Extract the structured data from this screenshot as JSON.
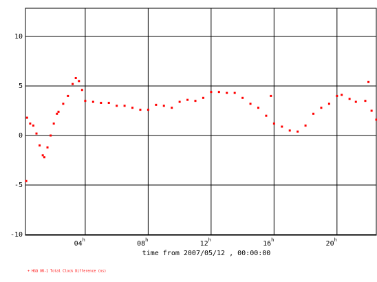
{
  "chart_data": {
    "type": "scatter",
    "xlabel": "time from 2007/05/12 , 00:00:00",
    "legend": "+ HGQ OR-1 Total Clock Difference (ns)",
    "x_tick_suffix": "h",
    "xlim": [
      0.2,
      22.5
    ],
    "ylim": [
      -10.07,
      12.85
    ],
    "xticks": [
      {
        "value": 4,
        "label": "04"
      },
      {
        "value": 8,
        "label": "08"
      },
      12,
      16,
      20
    ],
    "yticks": [
      -10,
      -5,
      0,
      5,
      10
    ],
    "grid": true,
    "series": [
      {
        "name": "HGQ OR-1 Total Clock Difference (ns)",
        "color": "#ff0000",
        "x": [
          0.25,
          0.3,
          0.5,
          0.7,
          0.9,
          1.1,
          1.3,
          1.4,
          1.6,
          1.8,
          2.0,
          2.2,
          2.3,
          2.6,
          2.9,
          3.2,
          3.4,
          3.6,
          3.8,
          4.0,
          4.5,
          5.0,
          5.5,
          6.0,
          6.5,
          7.0,
          7.5,
          8.0,
          8.5,
          9.0,
          9.5,
          10.0,
          10.5,
          11.0,
          11.5,
          12.0,
          12.5,
          13.0,
          13.5,
          14.0,
          14.5,
          15.0,
          15.5,
          15.8,
          16.0,
          16.5,
          17.0,
          17.5,
          18.0,
          18.5,
          19.0,
          19.5,
          20.0,
          20.3,
          20.8,
          21.2,
          21.8,
          22.0,
          22.2,
          22.5
        ],
        "values": [
          -4.6,
          1.8,
          1.2,
          1.0,
          0.2,
          -1.0,
          -2.0,
          -2.2,
          -1.2,
          0.0,
          1.2,
          2.2,
          2.4,
          3.2,
          4.0,
          5.2,
          5.8,
          5.5,
          4.6,
          3.5,
          3.4,
          3.3,
          3.3,
          3.0,
          3.0,
          2.8,
          2.6,
          2.6,
          3.1,
          3.0,
          2.8,
          3.4,
          3.6,
          3.5,
          3.8,
          4.4,
          4.4,
          4.3,
          4.3,
          3.8,
          3.2,
          2.8,
          2.0,
          4.0,
          1.2,
          0.9,
          0.5,
          0.4,
          1.0,
          2.2,
          2.8,
          3.2,
          4.0,
          4.1,
          3.7,
          3.4,
          3.5,
          5.4,
          2.5,
          1.6
        ]
      }
    ]
  }
}
